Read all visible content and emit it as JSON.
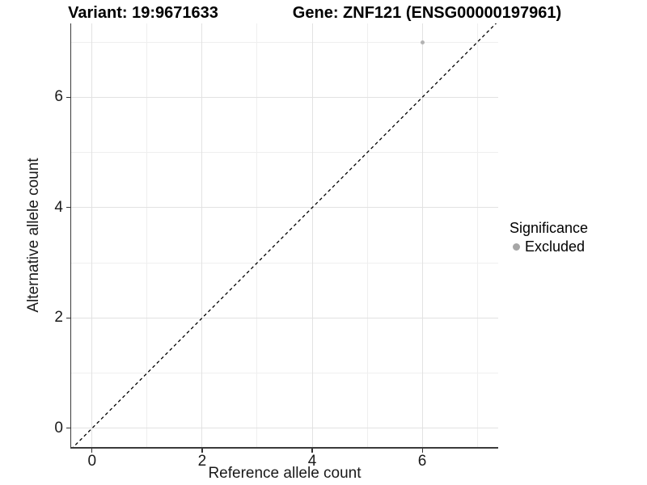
{
  "chart_data": {
    "type": "scatter",
    "title_left": "Variant: 19:9671633",
    "title_right": "Gene: ZNF121 (ENSG00000197961)",
    "xlabel": "Reference allele count",
    "ylabel": "Alternative allele count",
    "xlim": [
      -0.38,
      7.38
    ],
    "ylim": [
      -0.34,
      7.34
    ],
    "x_major_ticks": [
      0,
      2,
      4,
      6
    ],
    "x_tick_labels": [
      "0",
      "2",
      "4",
      "6"
    ],
    "y_major_ticks": [
      0,
      2,
      4,
      6
    ],
    "y_tick_labels": [
      "0",
      "2",
      "4",
      "6"
    ],
    "x_minor_gridlines": [
      1,
      3,
      5,
      7
    ],
    "y_minor_gridlines": [
      1,
      3,
      5,
      7
    ],
    "grid": true,
    "legend_position": "right",
    "identity_line": {
      "style": "dashed",
      "color": "#000000",
      "from_x": -0.38,
      "from_y": -0.38,
      "to_x": 7.38,
      "to_y": 7.38
    },
    "series": [
      {
        "name": "Excluded",
        "color": "#b3b3b3",
        "points": [
          {
            "x": 6,
            "y": 7
          }
        ]
      }
    ],
    "legend": {
      "title": "Significance",
      "items": [
        {
          "label": "Excluded",
          "color": "#a6a6a6"
        }
      ]
    },
    "colors": {
      "grid_major": "#e2e2e2",
      "grid_minor": "#efefef",
      "axis_line": "#3b3b3b"
    }
  }
}
